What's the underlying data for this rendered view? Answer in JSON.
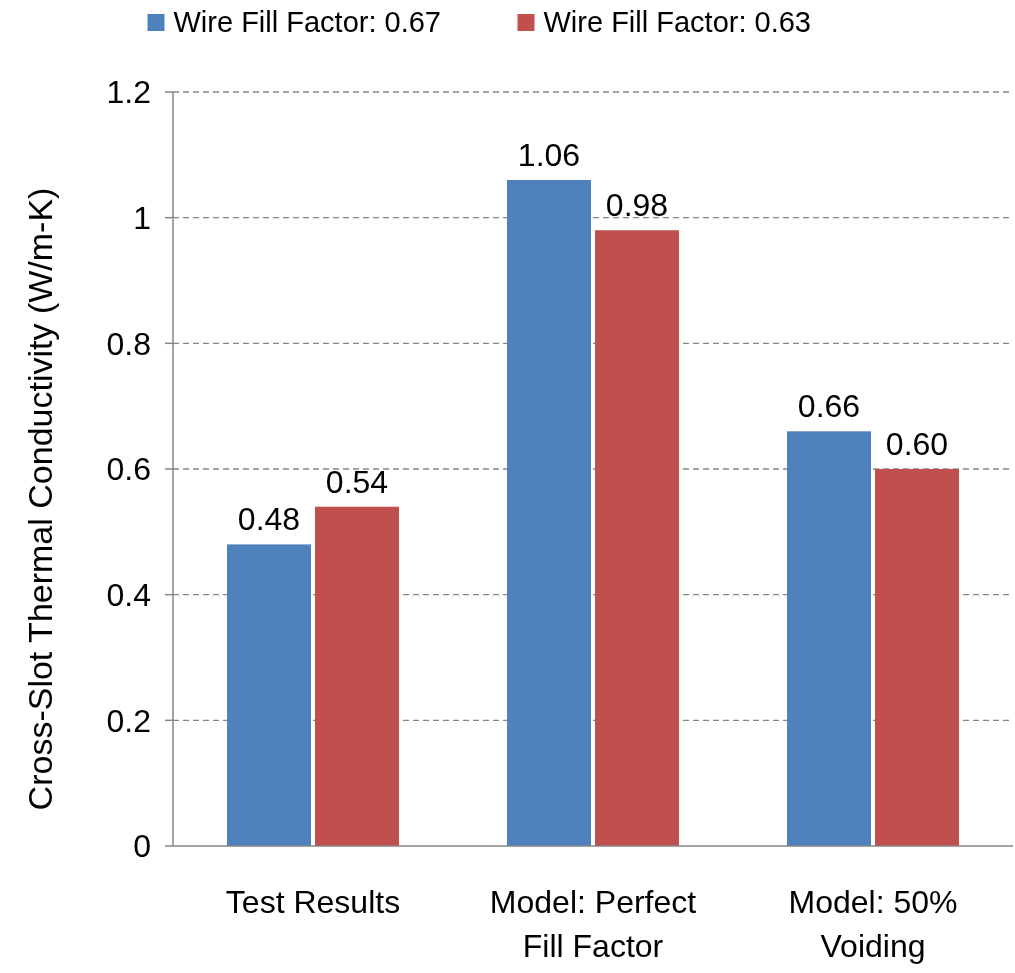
{
  "chart_data": {
    "type": "bar",
    "ylabel": "Cross-Slot Thermal Conductivity (W/m-K)",
    "categories": [
      "Test Results",
      "Model: Perfect Fill Factor",
      "Model: 50% Voiding"
    ],
    "series": [
      {
        "name": "Wire Fill Factor: 0.67",
        "color": "#4f81bd",
        "values": [
          0.48,
          1.06,
          0.66
        ],
        "value_labels": [
          "0.48",
          "1.06",
          "0.66"
        ]
      },
      {
        "name": "Wire Fill Factor: 0.63",
        "color": "#c0504d",
        "values": [
          0.54,
          0.98,
          0.6
        ],
        "value_labels": [
          "0.54",
          "0.98",
          "0.60"
        ]
      }
    ],
    "ylim": [
      0,
      1.2
    ],
    "yticks": [
      0,
      0.2,
      0.4,
      0.6,
      0.8,
      1,
      1.2
    ],
    "grid": "y",
    "legend": "top"
  }
}
